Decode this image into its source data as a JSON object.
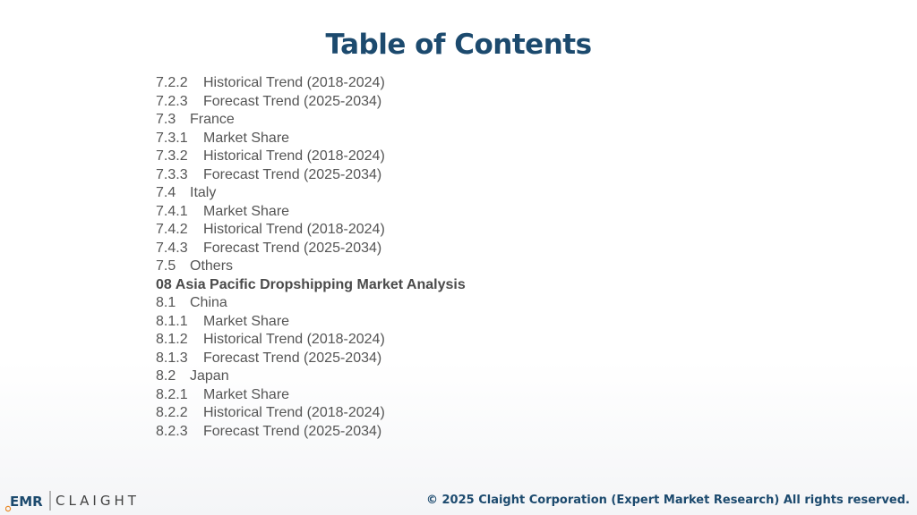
{
  "title": "Table of Contents",
  "toc": [
    {
      "num": "7.2.2",
      "text": "Historical Trend (2018-2024)",
      "bold": false
    },
    {
      "num": "7.2.3",
      "text": "Forecast Trend (2025-2034)",
      "bold": false
    },
    {
      "num": "7.3",
      "text": "France",
      "bold": false
    },
    {
      "num": "7.3.1",
      "text": "Market Share",
      "bold": false
    },
    {
      "num": "7.3.2",
      "text": "Historical Trend (2018-2024)",
      "bold": false
    },
    {
      "num": "7.3.3",
      "text": "Forecast Trend (2025-2034)",
      "bold": false
    },
    {
      "num": "7.4",
      "text": "Italy",
      "bold": false
    },
    {
      "num": "7.4.1",
      "text": "Market Share",
      "bold": false
    },
    {
      "num": "7.4.2",
      "text": "Historical Trend (2018-2024)",
      "bold": false
    },
    {
      "num": "7.4.3",
      "text": "Forecast Trend (2025-2034)",
      "bold": false
    },
    {
      "num": "7.5",
      "text": "Others",
      "bold": false
    },
    {
      "num": "08",
      "text": "Asia Pacific Dropshipping Market Analysis",
      "bold": true
    },
    {
      "num": "8.1",
      "text": "China",
      "bold": false
    },
    {
      "num": "8.1.1",
      "text": "Market Share",
      "bold": false
    },
    {
      "num": "8.1.2",
      "text": "Historical Trend (2018-2024)",
      "bold": false
    },
    {
      "num": "8.1.3",
      "text": "Forecast Trend (2025-2034)",
      "bold": false
    },
    {
      "num": "8.2",
      "text": "Japan",
      "bold": false
    },
    {
      "num": "8.2.1",
      "text": "Market Share",
      "bold": false
    },
    {
      "num": "8.2.2",
      "text": "Historical Trend (2018-2024)",
      "bold": false
    },
    {
      "num": "8.2.3",
      "text": "Forecast Trend (2025-2034)",
      "bold": false
    }
  ],
  "footer": {
    "logo_emr": "EMR",
    "logo_claight": "CLAIGHT",
    "copyright": "© 2025 Claight Corporation (Expert Market Research) All rights reserved."
  },
  "colors": {
    "title": "#1c4a6e",
    "body_text": "#555555",
    "logo_blue": "#1c4a6e",
    "logo_orange": "#e8892a"
  }
}
